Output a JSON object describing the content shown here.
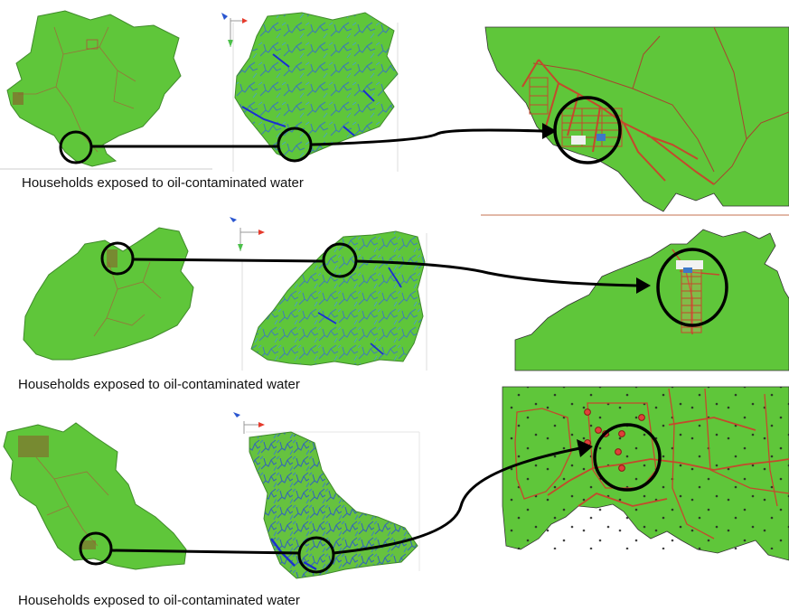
{
  "panels": [
    {
      "caption": "Households exposed to oil-contaminated water"
    },
    {
      "caption": "Households exposed to oil-contaminated water"
    },
    {
      "caption": "Households exposed to oil-contaminated water"
    }
  ],
  "colors": {
    "land": "#5fc63a",
    "land_dark": "#4caf2f",
    "boundary": "#3f8a2a",
    "roads": "#c4492c",
    "river": "#3d78c8",
    "river_major": "#1b2fd0",
    "highlight_circle": "#000000",
    "arrow": "#000000",
    "household": "#e0403a"
  },
  "icons": [
    "north-arrow-icon",
    "arrowhead-icon"
  ]
}
